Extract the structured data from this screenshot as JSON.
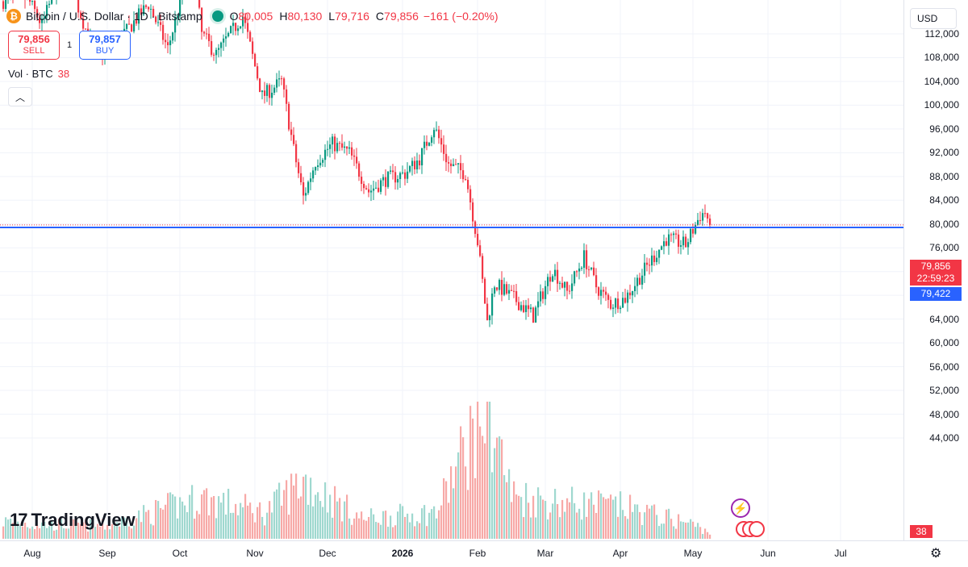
{
  "legend": {
    "symbol_icon": "bitcoin-icon",
    "title": "Bitcoin / U.S. Dollar · 1D · Bitstamp",
    "ohlc": [
      {
        "k": "O",
        "v": "80,005"
      },
      {
        "k": "H",
        "v": "80,130"
      },
      {
        "k": "L",
        "v": "79,716"
      },
      {
        "k": "C",
        "v": "79,856"
      }
    ],
    "change": "−161 (−0.20%)"
  },
  "trade": {
    "sell_price": "79,856",
    "sell_label": "SELL",
    "spread": "1",
    "buy_price": "79,857",
    "buy_label": "BUY"
  },
  "volume_legend": {
    "label": "Vol · BTC",
    "value": "38"
  },
  "collapse_icon": "chevron-up-icon",
  "currency": "USD",
  "price_labels": {
    "last": "79,856",
    "countdown": "22:59:23",
    "horizontal_line": "79,422",
    "volume": "38"
  },
  "branding": {
    "logo_text": "TradingView"
  },
  "colors": {
    "up": "#089981",
    "down": "#f23645",
    "line": "#2962ff",
    "grid": "#f0f3fa"
  },
  "chart_data": {
    "type": "candlestick",
    "symbol": "Bitcoin / U.S. Dollar",
    "interval": "1D",
    "exchange": "Bitstamp",
    "y_ticks": [
      "112,000",
      "108,000",
      "104,000",
      "100,000",
      "96,000",
      "92,000",
      "88,000",
      "84,000",
      "80,000",
      "76,000",
      "72,000",
      "68,000",
      "64,000",
      "60,000",
      "56,000",
      "52,000",
      "48,000",
      "44,000"
    ],
    "x_ticks": [
      {
        "label": "Aug",
        "date": "2025-08-01"
      },
      {
        "label": "Sep",
        "date": "2025-09-01"
      },
      {
        "label": "Oct",
        "date": "2025-10-01"
      },
      {
        "label": "Nov",
        "date": "2025-11-01"
      },
      {
        "label": "Dec",
        "date": "2025-12-01"
      },
      {
        "label": "2026",
        "date": "2026-01-01",
        "bold": true
      },
      {
        "label": "Feb",
        "date": "2026-02-01"
      },
      {
        "label": "Mar",
        "date": "2026-03-01"
      },
      {
        "label": "Apr",
        "date": "2026-04-01"
      },
      {
        "label": "May",
        "date": "2026-05-01"
      },
      {
        "label": "Jun",
        "date": "2026-06-01"
      },
      {
        "label": "Jul",
        "date": "2026-07-01"
      }
    ],
    "horizontal_line": 79422,
    "last_close": 79856,
    "price_path": [
      [
        "2025-07-20",
        117500
      ],
      [
        "2025-07-30",
        118000
      ],
      [
        "2025-08-05",
        113500
      ],
      [
        "2025-08-14",
        123500
      ],
      [
        "2025-08-25",
        110500
      ],
      [
        "2025-09-01",
        108500
      ],
      [
        "2025-09-18",
        117000
      ],
      [
        "2025-09-26",
        109500
      ],
      [
        "2025-10-06",
        125000
      ],
      [
        "2025-10-10",
        112000
      ],
      [
        "2025-10-16",
        108500
      ],
      [
        "2025-10-20",
        111000
      ],
      [
        "2025-10-27",
        115000
      ],
      [
        "2025-11-04",
        101500
      ],
      [
        "2025-11-12",
        104000
      ],
      [
        "2025-11-17",
        92500
      ],
      [
        "2025-11-21",
        84500
      ],
      [
        "2025-11-26",
        90500
      ],
      [
        "2025-12-03",
        93500
      ],
      [
        "2025-12-10",
        92000
      ],
      [
        "2025-12-18",
        85500
      ],
      [
        "2025-12-25",
        87500
      ],
      [
        "2026-01-02",
        88500
      ],
      [
        "2026-01-08",
        91000
      ],
      [
        "2026-01-14",
        96500
      ],
      [
        "2026-01-20",
        90000
      ],
      [
        "2026-01-27",
        88500
      ],
      [
        "2026-02-01",
        77000
      ],
      [
        "2026-02-05",
        63500
      ],
      [
        "2026-02-08",
        70000
      ],
      [
        "2026-02-16",
        67500
      ],
      [
        "2026-02-24",
        64500
      ],
      [
        "2026-03-04",
        72500
      ],
      [
        "2026-03-10",
        68500
      ],
      [
        "2026-03-17",
        74500
      ],
      [
        "2026-03-22",
        69500
      ],
      [
        "2026-03-28",
        66500
      ],
      [
        "2026-04-03",
        67500
      ],
      [
        "2026-04-13",
        73500
      ],
      [
        "2026-04-20",
        77500
      ],
      [
        "2026-04-28",
        76500
      ],
      [
        "2026-05-04",
        81500
      ],
      [
        "2026-05-06",
        82000
      ],
      [
        "2026-05-08",
        79856
      ]
    ],
    "volume_path": [
      [
        "2025-07-20",
        12
      ],
      [
        "2025-08-01",
        10
      ],
      [
        "2025-09-01",
        9
      ],
      [
        "2025-10-10",
        28
      ],
      [
        "2025-11-05",
        18
      ],
      [
        "2025-11-21",
        40
      ],
      [
        "2025-12-15",
        14
      ],
      [
        "2026-01-15",
        18
      ],
      [
        "2026-02-05",
        95
      ],
      [
        "2026-02-15",
        30
      ],
      [
        "2026-03-01",
        26
      ],
      [
        "2026-04-01",
        22
      ],
      [
        "2026-05-01",
        10
      ],
      [
        "2026-05-08",
        4
      ]
    ]
  }
}
